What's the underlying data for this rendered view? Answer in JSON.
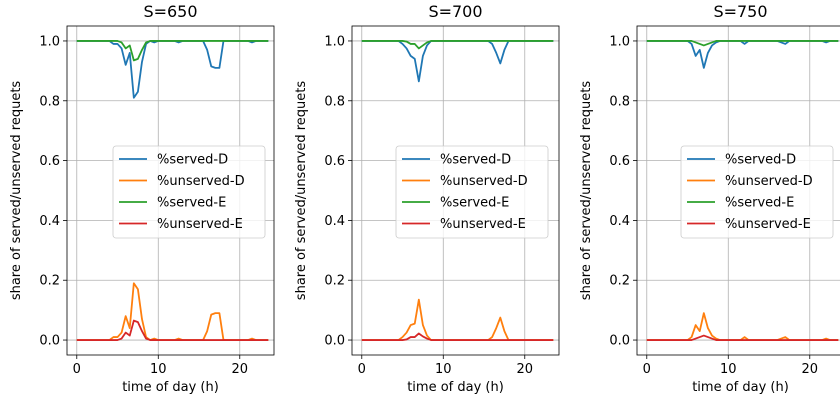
{
  "figure": {
    "ylabel": "share of served/unserved requets",
    "xlabel": "time of day (h)"
  },
  "chart_data": [
    {
      "type": "line",
      "title": "S=650",
      "xlabel": "time of day (h)",
      "ylabel": "share of served/unserved requets",
      "xlim": [
        -1.2,
        24.2
      ],
      "ylim": [
        -0.05,
        1.05
      ],
      "xticks": [
        0,
        10,
        20
      ],
      "yticks": [
        0.0,
        0.2,
        0.4,
        0.6,
        0.8,
        1.0
      ],
      "grid": true,
      "legend_position": "center-right",
      "x": [
        0,
        0.5,
        1,
        1.5,
        2,
        2.5,
        3,
        3.5,
        4,
        4.5,
        5,
        5.5,
        6,
        6.5,
        7,
        7.5,
        8,
        8.5,
        9,
        9.5,
        10,
        10.5,
        11,
        11.5,
        12,
        12.5,
        13,
        13.5,
        14,
        14.5,
        15,
        15.5,
        16,
        16.5,
        17,
        17.5,
        18,
        18.5,
        19,
        19.5,
        20,
        20.5,
        21,
        21.5,
        22,
        22.5,
        23,
        23.5
      ],
      "series": [
        {
          "name": "%served-D",
          "color": "#1f77b4",
          "values": [
            1,
            1,
            1,
            1,
            1,
            1,
            1,
            1,
            1,
            0.99,
            0.99,
            0.975,
            0.92,
            0.96,
            0.81,
            0.83,
            0.93,
            0.99,
            1,
            0.995,
            1,
            1,
            1,
            1,
            1,
            0.995,
            1,
            1,
            1,
            1,
            1,
            1,
            0.97,
            0.915,
            0.91,
            0.91,
            1,
            1,
            1,
            1,
            1,
            1,
            1,
            0.995,
            1,
            1,
            1,
            1
          ]
        },
        {
          "name": "%unserved-D",
          "color": "#ff7f0e",
          "values": [
            0,
            0,
            0,
            0,
            0,
            0,
            0,
            0,
            0,
            0.01,
            0.01,
            0.025,
            0.08,
            0.04,
            0.19,
            0.17,
            0.07,
            0.01,
            0,
            0.005,
            0,
            0,
            0,
            0,
            0,
            0.005,
            0,
            0,
            0,
            0,
            0,
            0,
            0.03,
            0.085,
            0.09,
            0.09,
            0,
            0,
            0,
            0,
            0,
            0,
            0,
            0.005,
            0,
            0,
            0,
            0
          ]
        },
        {
          "name": "%served-E",
          "color": "#2ca02c",
          "values": [
            1,
            1,
            1,
            1,
            1,
            1,
            1,
            1,
            1,
            1,
            1,
            0.995,
            0.975,
            0.985,
            0.935,
            0.94,
            0.97,
            0.995,
            1,
            1,
            1,
            1,
            1,
            1,
            1,
            1,
            1,
            1,
            1,
            1,
            1,
            1,
            1,
            1,
            1,
            1,
            1,
            1,
            1,
            1,
            1,
            1,
            1,
            1,
            1,
            1,
            1,
            1
          ]
        },
        {
          "name": "%unserved-E",
          "color": "#d62728",
          "values": [
            0,
            0,
            0,
            0,
            0,
            0,
            0,
            0,
            0,
            0,
            0,
            0.005,
            0.025,
            0.015,
            0.065,
            0.06,
            0.03,
            0.005,
            0,
            0,
            0,
            0,
            0,
            0,
            0,
            0,
            0,
            0,
            0,
            0,
            0,
            0,
            0,
            0,
            0,
            0,
            0,
            0,
            0,
            0,
            0,
            0,
            0,
            0,
            0,
            0,
            0,
            0
          ]
        }
      ]
    },
    {
      "type": "line",
      "title": "S=700",
      "xlabel": "time of day (h)",
      "ylabel": "share of served/unserved requets",
      "xlim": [
        -1.2,
        24.2
      ],
      "ylim": [
        -0.05,
        1.05
      ],
      "xticks": [
        0,
        10,
        20
      ],
      "yticks": [
        0.0,
        0.2,
        0.4,
        0.6,
        0.8,
        1.0
      ],
      "grid": true,
      "legend_position": "center-right",
      "x": [
        0,
        0.5,
        1,
        1.5,
        2,
        2.5,
        3,
        3.5,
        4,
        4.5,
        5,
        5.5,
        6,
        6.5,
        7,
        7.5,
        8,
        8.5,
        9,
        9.5,
        10,
        10.5,
        11,
        11.5,
        12,
        12.5,
        13,
        13.5,
        14,
        14.5,
        15,
        15.5,
        16,
        16.5,
        17,
        17.5,
        18,
        18.5,
        19,
        19.5,
        20,
        20.5,
        21,
        21.5,
        22,
        22.5,
        23,
        23.5
      ],
      "series": [
        {
          "name": "%served-D",
          "color": "#1f77b4",
          "values": [
            1,
            1,
            1,
            1,
            1,
            1,
            1,
            1,
            1,
            1,
            0.99,
            0.975,
            0.95,
            0.94,
            0.865,
            0.95,
            0.985,
            1,
            1,
            1,
            1,
            1,
            1,
            1,
            1,
            1,
            1,
            1,
            1,
            1,
            1,
            1,
            0.99,
            0.96,
            0.925,
            0.97,
            1,
            1,
            1,
            1,
            1,
            1,
            1,
            1,
            1,
            1,
            1,
            1
          ]
        },
        {
          "name": "%unserved-D",
          "color": "#ff7f0e",
          "values": [
            0,
            0,
            0,
            0,
            0,
            0,
            0,
            0,
            0,
            0,
            0.01,
            0.025,
            0.05,
            0.055,
            0.135,
            0.05,
            0.015,
            0,
            0,
            0,
            0,
            0,
            0,
            0,
            0,
            0,
            0,
            0,
            0,
            0,
            0,
            0,
            0.01,
            0.04,
            0.075,
            0.03,
            0,
            0,
            0,
            0,
            0,
            0,
            0,
            0,
            0,
            0,
            0,
            0
          ]
        },
        {
          "name": "%served-E",
          "color": "#2ca02c",
          "values": [
            1,
            1,
            1,
            1,
            1,
            1,
            1,
            1,
            1,
            1,
            1,
            0.998,
            0.99,
            0.99,
            0.975,
            0.985,
            0.995,
            1,
            1,
            1,
            1,
            1,
            1,
            1,
            1,
            1,
            1,
            1,
            1,
            1,
            1,
            1,
            1,
            1,
            1,
            1,
            1,
            1,
            1,
            1,
            1,
            1,
            1,
            1,
            1,
            1,
            1,
            1
          ]
        },
        {
          "name": "%unserved-E",
          "color": "#d62728",
          "values": [
            0,
            0,
            0,
            0,
            0,
            0,
            0,
            0,
            0,
            0,
            0,
            0.002,
            0.01,
            0.01,
            0.022,
            0.012,
            0.005,
            0,
            0,
            0,
            0,
            0,
            0,
            0,
            0,
            0,
            0,
            0,
            0,
            0,
            0,
            0,
            0,
            0,
            0,
            0,
            0,
            0,
            0,
            0,
            0,
            0,
            0,
            0,
            0,
            0,
            0,
            0
          ]
        }
      ]
    },
    {
      "type": "line",
      "title": "S=750",
      "xlabel": "time of day (h)",
      "ylabel": "share of served/unserved requets",
      "xlim": [
        -1.2,
        24.2
      ],
      "ylim": [
        -0.05,
        1.05
      ],
      "xticks": [
        0,
        10,
        20
      ],
      "yticks": [
        0.0,
        0.2,
        0.4,
        0.6,
        0.8,
        1.0
      ],
      "grid": true,
      "legend_position": "center-right",
      "x": [
        0,
        0.5,
        1,
        1.5,
        2,
        2.5,
        3,
        3.5,
        4,
        4.5,
        5,
        5.5,
        6,
        6.5,
        7,
        7.5,
        8,
        8.5,
        9,
        9.5,
        10,
        10.5,
        11,
        11.5,
        12,
        12.5,
        13,
        13.5,
        14,
        14.5,
        15,
        15.5,
        16,
        16.5,
        17,
        17.5,
        18,
        18.5,
        19,
        19.5,
        20,
        20.5,
        21,
        21.5,
        22,
        22.5,
        23,
        23.5
      ],
      "series": [
        {
          "name": "%served-D",
          "color": "#1f77b4",
          "values": [
            1,
            1,
            1,
            1,
            1,
            1,
            1,
            1,
            1,
            1,
            1,
            0.99,
            0.95,
            0.97,
            0.91,
            0.96,
            0.985,
            0.995,
            1,
            1,
            1,
            1,
            1,
            1,
            0.99,
            1,
            1,
            1,
            1,
            1,
            1,
            1,
            1,
            0.995,
            0.99,
            1,
            1,
            1,
            1,
            1,
            1,
            1,
            1,
            1,
            0.995,
            1,
            1,
            1
          ]
        },
        {
          "name": "%unserved-D",
          "color": "#ff7f0e",
          "values": [
            0,
            0,
            0,
            0,
            0,
            0,
            0,
            0,
            0,
            0,
            0,
            0.01,
            0.05,
            0.03,
            0.09,
            0.04,
            0.015,
            0.005,
            0,
            0,
            0,
            0,
            0,
            0,
            0.01,
            0,
            0,
            0,
            0,
            0,
            0,
            0,
            0,
            0.005,
            0.01,
            0,
            0,
            0,
            0,
            0,
            0,
            0,
            0,
            0,
            0.005,
            0,
            0,
            0
          ]
        },
        {
          "name": "%served-E",
          "color": "#2ca02c",
          "values": [
            1,
            1,
            1,
            1,
            1,
            1,
            1,
            1,
            1,
            1,
            1,
            1,
            0.995,
            0.99,
            0.985,
            0.99,
            0.995,
            1,
            1,
            1,
            1,
            1,
            1,
            1,
            1,
            1,
            1,
            1,
            1,
            1,
            1,
            1,
            1,
            1,
            1,
            1,
            1,
            1,
            1,
            1,
            1,
            1,
            1,
            1,
            1,
            1,
            1,
            1
          ]
        },
        {
          "name": "%unserved-E",
          "color": "#d62728",
          "values": [
            0,
            0,
            0,
            0,
            0,
            0,
            0,
            0,
            0,
            0,
            0,
            0,
            0.005,
            0.01,
            0.015,
            0.01,
            0.005,
            0,
            0,
            0,
            0,
            0,
            0,
            0,
            0,
            0,
            0,
            0,
            0,
            0,
            0,
            0,
            0,
            0,
            0,
            0,
            0,
            0,
            0,
            0,
            0,
            0,
            0,
            0,
            0,
            0,
            0,
            0
          ]
        }
      ]
    }
  ]
}
